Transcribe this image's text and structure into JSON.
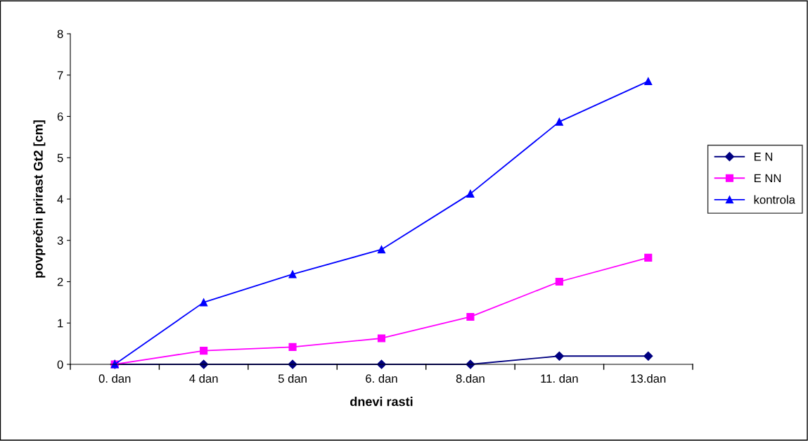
{
  "chart_data": {
    "type": "line",
    "xlabel": "dnevi rasti",
    "ylabel": "povprečni prirast Gt2 [cm]",
    "categories": [
      "0. dan",
      "4 dan",
      "5 dan",
      "6. dan",
      "8.dan",
      "11. dan",
      "13.dan"
    ],
    "series": [
      {
        "name": "E N",
        "color": "#000080",
        "marker": "diamond",
        "values": [
          0,
          0,
          0,
          0,
          0,
          0.2,
          0.2
        ]
      },
      {
        "name": "E NN",
        "color": "#ff00ff",
        "marker": "square",
        "values": [
          0,
          0.33,
          0.42,
          0.63,
          1.15,
          2.0,
          2.58
        ]
      },
      {
        "name": "kontrola",
        "color": "#0000ff",
        "marker": "triangle",
        "values": [
          0,
          1.5,
          2.18,
          2.78,
          4.13,
          5.87,
          6.85
        ]
      }
    ],
    "ylim": [
      0,
      8
    ],
    "yticks": [
      0,
      1,
      2,
      3,
      4,
      5,
      6,
      7,
      8
    ],
    "grid": false,
    "legend": "right",
    "line_style": "solid"
  }
}
